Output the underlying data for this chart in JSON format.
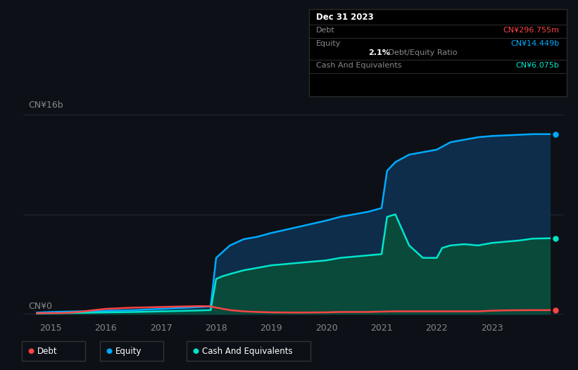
{
  "background_color": "#0d1117",
  "plot_bg_color": "#0d1117",
  "grid_color": "#253040",
  "title_box": {
    "date": "Dec 31 2023",
    "debt_label": "Debt",
    "debt_value": "CN¥296.755m",
    "debt_color": "#ff4444",
    "equity_label": "Equity",
    "equity_value": "CN¥14.449b",
    "equity_color": "#00aaff",
    "ratio_value": "2.1%",
    "ratio_label": " Debt/Equity Ratio",
    "ratio_value_color": "#ffffff",
    "cash_label": "Cash And Equivalents",
    "cash_value": "CN¥6.075b",
    "cash_color": "#00e5cc"
  },
  "ylabel_top": "CN¥16b",
  "ylabel_zero": "CN¥0",
  "xlim": [
    2014.5,
    2024.3
  ],
  "ylim": [
    -500000000.0,
    17500000000.0
  ],
  "xtick_years": [
    2015,
    2016,
    2017,
    2018,
    2019,
    2020,
    2021,
    2022,
    2023
  ],
  "debt_color": "#ff4444",
  "equity_color": "#00aaff",
  "cash_color": "#00e5cc",
  "equity_fill_color": "#0d2d4a",
  "cash_fill_color": "#0a4a3a",
  "debt_data_x": [
    2014.75,
    2015.0,
    2015.25,
    2015.5,
    2015.75,
    2016.0,
    2016.25,
    2016.5,
    2016.75,
    2017.0,
    2017.25,
    2017.5,
    2017.75,
    2017.9,
    2018.0,
    2018.25,
    2018.5,
    2018.75,
    2019.0,
    2019.5,
    2020.0,
    2020.25,
    2020.5,
    2020.75,
    2021.0,
    2021.25,
    2021.5,
    2021.75,
    2022.0,
    2022.25,
    2022.5,
    2022.75,
    2023.0,
    2023.25,
    2023.5,
    2023.75,
    2024.05
  ],
  "debt_data_y": [
    50000000.0,
    60000000.0,
    70000000.0,
    150000000.0,
    280000000.0,
    400000000.0,
    450000000.0,
    500000000.0,
    520000000.0,
    550000000.0,
    580000000.0,
    600000000.0,
    620000000.0,
    600000000.0,
    500000000.0,
    300000000.0,
    200000000.0,
    150000000.0,
    120000000.0,
    100000000.0,
    120000000.0,
    150000000.0,
    150000000.0,
    150000000.0,
    180000000.0,
    200000000.0,
    200000000.0,
    200000000.0,
    200000000.0,
    200000000.0,
    200000000.0,
    200000000.0,
    250000000.0,
    280000000.0,
    290000000.0,
    297000000.0,
    297000000.0
  ],
  "equity_data_x": [
    2014.75,
    2015.0,
    2015.5,
    2016.0,
    2016.5,
    2017.0,
    2017.5,
    2017.9,
    2018.0,
    2018.25,
    2018.5,
    2018.75,
    2019.0,
    2019.5,
    2020.0,
    2020.25,
    2020.5,
    2020.75,
    2021.0,
    2021.1,
    2021.25,
    2021.5,
    2021.75,
    2022.0,
    2022.25,
    2022.5,
    2022.75,
    2023.0,
    2023.25,
    2023.5,
    2023.75,
    2024.05
  ],
  "equity_data_y": [
    100000000.0,
    150000000.0,
    200000000.0,
    250000000.0,
    300000000.0,
    400000000.0,
    500000000.0,
    600000000.0,
    4500000000.0,
    5500000000.0,
    6000000000.0,
    6200000000.0,
    6500000000.0,
    7000000000.0,
    7500000000.0,
    7800000000.0,
    8000000000.0,
    8200000000.0,
    8500000000.0,
    11500000000.0,
    12200000000.0,
    12800000000.0,
    13000000000.0,
    13200000000.0,
    13800000000.0,
    14000000000.0,
    14200000000.0,
    14300000000.0,
    14350000000.0,
    14400000000.0,
    14449000000.0,
    14449000000.0
  ],
  "cash_data_x": [
    2014.75,
    2015.0,
    2015.5,
    2016.0,
    2016.5,
    2017.0,
    2017.5,
    2017.9,
    2018.0,
    2018.1,
    2018.25,
    2018.5,
    2018.75,
    2019.0,
    2019.5,
    2020.0,
    2020.25,
    2020.5,
    2020.75,
    2021.0,
    2021.1,
    2021.25,
    2021.5,
    2021.75,
    2022.0,
    2022.1,
    2022.25,
    2022.5,
    2022.75,
    2023.0,
    2023.25,
    2023.5,
    2023.75,
    2024.05
  ],
  "cash_data_y": [
    30000000.0,
    50000000.0,
    80000000.0,
    120000000.0,
    150000000.0,
    200000000.0,
    250000000.0,
    300000000.0,
    2800000000.0,
    3000000000.0,
    3200000000.0,
    3500000000.0,
    3700000000.0,
    3900000000.0,
    4100000000.0,
    4300000000.0,
    4500000000.0,
    4600000000.0,
    4700000000.0,
    4800000000.0,
    7800000000.0,
    8000000000.0,
    5500000000.0,
    4500000000.0,
    4500000000.0,
    5300000000.0,
    5500000000.0,
    5600000000.0,
    5500000000.0,
    5700000000.0,
    5800000000.0,
    5900000000.0,
    6050000000.0,
    6075000000.0
  ],
  "legend": [
    {
      "label": "Debt",
      "color": "#ff4444"
    },
    {
      "label": "Equity",
      "color": "#00aaff"
    },
    {
      "label": "Cash And Equivalents",
      "color": "#00e5cc"
    }
  ]
}
